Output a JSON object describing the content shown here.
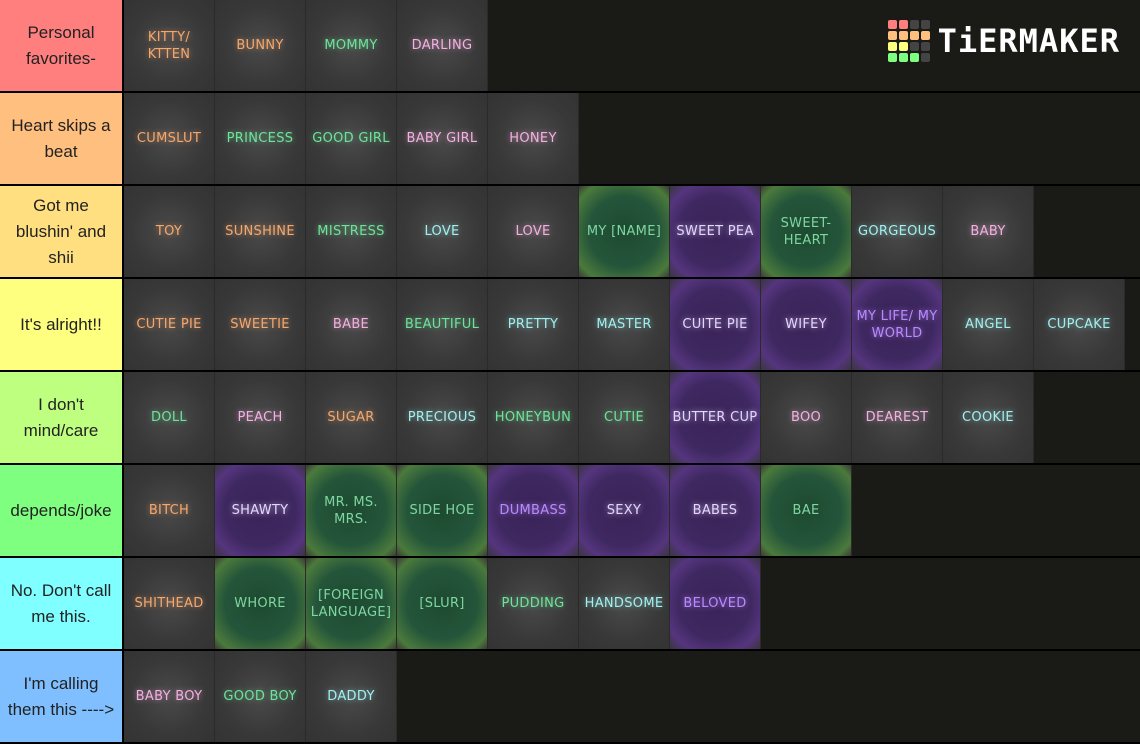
{
  "logo": {
    "text": "TiERMAKER",
    "grid_colors": [
      "#ff7f7f",
      "#ff7f7f",
      "#444",
      "#444",
      "#ffbf7f",
      "#ffbf7f",
      "#ffbf7f",
      "#ffbf7f",
      "#ffff7f",
      "#ffff7f",
      "#444",
      "#444",
      "#7fff7f",
      "#7fff7f",
      "#7fff7f",
      "#444"
    ]
  },
  "tiers": [
    {
      "label": "Personal favorites-",
      "color": "#ff7f7f",
      "items": [
        {
          "text": "KITTY/ KTTEN",
          "fg": "orange",
          "bg": "grey"
        },
        {
          "text": "BUNNY",
          "fg": "orange",
          "bg": "grey"
        },
        {
          "text": "MOMMY",
          "fg": "green",
          "bg": "grey"
        },
        {
          "text": "DARLING",
          "fg": "pink",
          "bg": "grey"
        }
      ]
    },
    {
      "label": "Heart skips a beat",
      "color": "#ffbf7f",
      "items": [
        {
          "text": "CUMSLUT",
          "fg": "orange",
          "bg": "grey"
        },
        {
          "text": "PRINCESS",
          "fg": "green",
          "bg": "grey"
        },
        {
          "text": "GOOD GIRL",
          "fg": "green",
          "bg": "grey"
        },
        {
          "text": "BABY GIRL",
          "fg": "pink",
          "bg": "grey"
        },
        {
          "text": "HONEY",
          "fg": "pink",
          "bg": "grey"
        }
      ]
    },
    {
      "label": "Got me blushin' and shii",
      "color": "#ffdf7f",
      "items": [
        {
          "text": "TOY",
          "fg": "orange",
          "bg": "grey"
        },
        {
          "text": "SUNSHINE",
          "fg": "orange",
          "bg": "grey"
        },
        {
          "text": "MISTRESS",
          "fg": "green",
          "bg": "grey"
        },
        {
          "text": "LOVE",
          "fg": "cyan",
          "bg": "grey"
        },
        {
          "text": "LOVE",
          "fg": "pink",
          "bg": "grey"
        },
        {
          "text": "MY [NAME]",
          "fg": "dkgreen",
          "bg": "green"
        },
        {
          "text": "SWEET PEA",
          "fg": "lav",
          "bg": "purple"
        },
        {
          "text": "SWEET-HEART",
          "fg": "dkgreen",
          "bg": "green"
        },
        {
          "text": "GORGEOUS",
          "fg": "cyan",
          "bg": "grey"
        },
        {
          "text": "BABY",
          "fg": "pink",
          "bg": "grey"
        }
      ]
    },
    {
      "label": "It's alright!!",
      "color": "#ffff7f",
      "items": [
        {
          "text": "CUTIE PIE",
          "fg": "orange",
          "bg": "grey"
        },
        {
          "text": "SWEETIE",
          "fg": "orange",
          "bg": "grey"
        },
        {
          "text": "BABE",
          "fg": "pink",
          "bg": "grey"
        },
        {
          "text": "BEAUTIFUL",
          "fg": "green",
          "bg": "grey"
        },
        {
          "text": "PRETTY",
          "fg": "cyan",
          "bg": "grey"
        },
        {
          "text": "MASTER",
          "fg": "cyan",
          "bg": "grey"
        },
        {
          "text": "CUITE PIE",
          "fg": "lav",
          "bg": "purple"
        },
        {
          "text": "WIFEY",
          "fg": "lav",
          "bg": "purple"
        },
        {
          "text": "MY LIFE/ MY WORLD",
          "fg": "purple",
          "bg": "purple"
        },
        {
          "text": "ANGEL",
          "fg": "cyan",
          "bg": "grey"
        },
        {
          "text": "CUPCAKE",
          "fg": "cyan",
          "bg": "grey"
        }
      ]
    },
    {
      "label": "I don't mind/care",
      "color": "#bfff7f",
      "items": [
        {
          "text": "DOLL",
          "fg": "green",
          "bg": "grey"
        },
        {
          "text": "PEACH",
          "fg": "pink",
          "bg": "grey"
        },
        {
          "text": "SUGAR",
          "fg": "orange",
          "bg": "grey"
        },
        {
          "text": "PRECIOUS",
          "fg": "cyan",
          "bg": "grey"
        },
        {
          "text": "HONEYBUN",
          "fg": "green",
          "bg": "grey"
        },
        {
          "text": "CUTIE",
          "fg": "green",
          "bg": "grey"
        },
        {
          "text": "BUTTER CUP",
          "fg": "lav",
          "bg": "purple"
        },
        {
          "text": "BOO",
          "fg": "pink",
          "bg": "grey"
        },
        {
          "text": "DEAREST",
          "fg": "pink",
          "bg": "grey"
        },
        {
          "text": "COOKIE",
          "fg": "cyan",
          "bg": "grey"
        }
      ]
    },
    {
      "label": "depends/joke",
      "color": "#7fff7f",
      "items": [
        {
          "text": "BITCH",
          "fg": "orange",
          "bg": "grey"
        },
        {
          "text": "SHAWTY",
          "fg": "lav",
          "bg": "purple"
        },
        {
          "text": "MR. MS. MRS.",
          "fg": "dkgreen",
          "bg": "green"
        },
        {
          "text": "SIDE HOE",
          "fg": "dkgreen",
          "bg": "green"
        },
        {
          "text": "DUMBASS",
          "fg": "purple",
          "bg": "purple"
        },
        {
          "text": "SEXY",
          "fg": "lav",
          "bg": "purple"
        },
        {
          "text": "BABES",
          "fg": "lav",
          "bg": "purple"
        },
        {
          "text": "BAE",
          "fg": "dkgreen",
          "bg": "green"
        }
      ]
    },
    {
      "label": "No. Don't call me this.",
      "color": "#7fffff",
      "items": [
        {
          "text": "SHITHEAD",
          "fg": "orange",
          "bg": "grey"
        },
        {
          "text": "WHORE",
          "fg": "dkgreen",
          "bg": "green"
        },
        {
          "text": "[FOREIGN LANGUAGE]",
          "fg": "dkgreen",
          "bg": "green"
        },
        {
          "text": "[SLUR]",
          "fg": "dkgreen",
          "bg": "green"
        },
        {
          "text": "PUDDING",
          "fg": "green",
          "bg": "grey"
        },
        {
          "text": "HANDSOME",
          "fg": "cyan",
          "bg": "grey"
        },
        {
          "text": "BELOVED",
          "fg": "purple",
          "bg": "purple"
        }
      ]
    },
    {
      "label": "I'm calling them this ---->",
      "color": "#7fbfff",
      "items": [
        {
          "text": "BABY BOY",
          "fg": "pink",
          "bg": "grey"
        },
        {
          "text": "GOOD BOY",
          "fg": "green",
          "bg": "grey"
        },
        {
          "text": "DADDY",
          "fg": "cyan",
          "bg": "grey"
        }
      ]
    }
  ]
}
